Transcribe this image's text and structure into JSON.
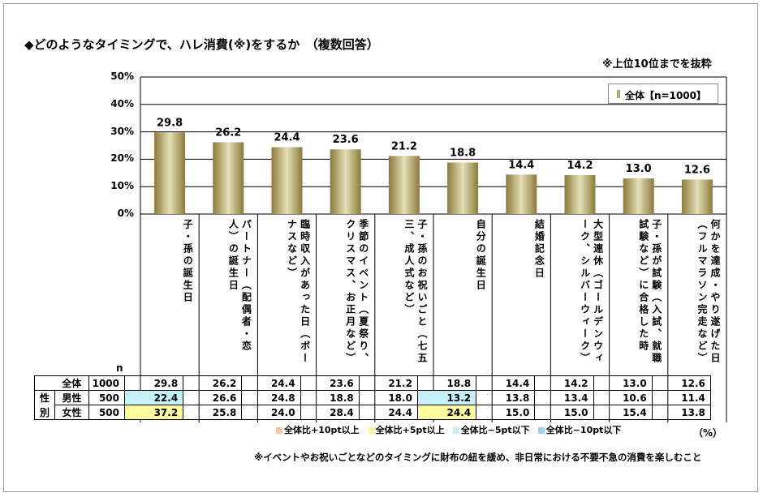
{
  "title": "◆どのようなタイミングで、ハレ消費(※)をするか　（複数回答）",
  "note_top": "※上位10位までを抜粋",
  "legend_label": "全体【n=1000】",
  "n_label": "n",
  "unit": "（%）",
  "footnote": "※イベントやお祝いごとなどのタイミングに財布の紐を緩め、非日常における不要不急の消費を楽しむこと",
  "highlight_key": [
    {
      "label": "全体比+10pt以上",
      "color": "#f5c99e"
    },
    {
      "label": "全体比+5pt以上",
      "color": "#fffaa0"
    },
    {
      "label": "全体比−5pt以下",
      "color": "#c6f0f8"
    },
    {
      "label": "全体比−10pt以下",
      "color": "#9fd2f0"
    }
  ],
  "group_label": "性別",
  "colors": {
    "bar_dark": "#8a7a3a",
    "bar_light": "#e6dfb8",
    "grid": "#000000"
  },
  "chart_data": {
    "type": "bar",
    "categories": [
      "子・孫の誕生日",
      "パートナー（配偶者・恋人）の誕生日",
      "臨時収入があった日（ボーナスなど）",
      "季節のイベント（夏祭り、クリスマス、お正月など）",
      "子・孫のお祝いごと（七五三、成人式など）",
      "自分の誕生日",
      "結婚記念日",
      "大型連休（ゴールデンウィーク、シルバーウィーク）",
      "子・孫が試験（入試、就職試験など）に合格した時",
      "何かを達成・やり遂げた日（フルマラソン完走など）"
    ],
    "series": [
      {
        "name": "全体【n=1000】",
        "values": [
          29.8,
          26.2,
          24.4,
          23.6,
          21.2,
          18.8,
          14.4,
          14.2,
          13.0,
          12.6
        ]
      }
    ],
    "ylim": [
      0,
      50
    ],
    "yticks": [
      "0%",
      "10%",
      "20%",
      "30%",
      "40%",
      "50%"
    ],
    "table": [
      {
        "label": "全体",
        "n": "1000",
        "values": [
          "29.8",
          "26.2",
          "24.4",
          "23.6",
          "21.2",
          "18.8",
          "14.4",
          "14.2",
          "13.0",
          "12.6"
        ],
        "highlights": [
          "",
          "",
          "",
          "",
          "",
          "",
          "",
          "",
          "",
          ""
        ]
      },
      {
        "label": "男性",
        "n": "500",
        "values": [
          "22.4",
          "26.6",
          "24.8",
          "18.8",
          "18.0",
          "13.2",
          "13.8",
          "13.4",
          "10.6",
          "11.4"
        ],
        "highlights": [
          "lo5",
          "",
          "",
          "",
          "",
          "lo5",
          "",
          "",
          "",
          ""
        ]
      },
      {
        "label": "女性",
        "n": "500",
        "values": [
          "37.2",
          "25.8",
          "24.0",
          "28.4",
          "24.4",
          "24.4",
          "15.0",
          "15.0",
          "15.4",
          "13.8"
        ],
        "highlights": [
          "hi5",
          "",
          "",
          "",
          "",
          "hi5",
          "",
          "",
          "",
          ""
        ]
      }
    ]
  }
}
